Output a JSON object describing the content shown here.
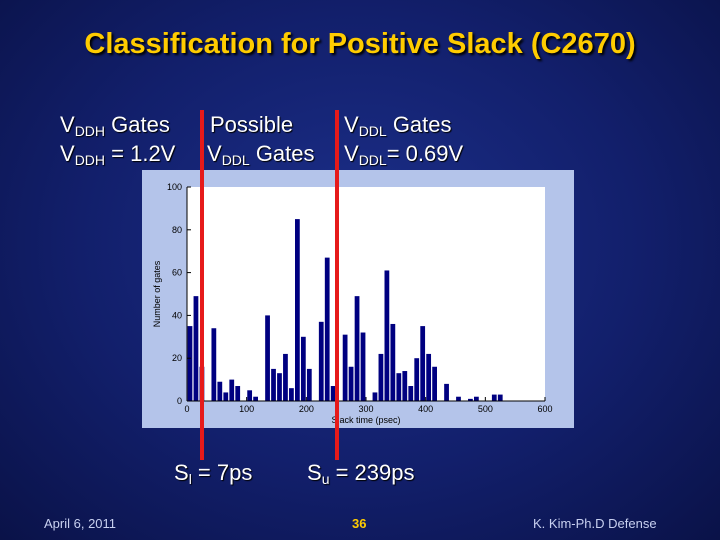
{
  "title": "Classification for Positive Slack (C2670)",
  "labels": {
    "vddh_gates": {
      "v": "V",
      "sub": "DDH",
      "rest": " Gates"
    },
    "vddh_value": {
      "v": "V",
      "sub": "DDH",
      "rest": " = 1.2V"
    },
    "possible": "Possible",
    "possible_vddl": {
      "v": "V",
      "sub": "DDL",
      "rest": " Gates"
    },
    "vddl_gates": {
      "v": "V",
      "sub": "DDL",
      "rest": " Gates"
    },
    "vddl_value": {
      "v": "V",
      "sub": "DDL",
      "rest": "= 0.69V"
    }
  },
  "bounds": {
    "lower": {
      "s": "S",
      "sub": "l",
      "rest": " = 7ps",
      "value": 7
    },
    "upper": {
      "s": "S",
      "sub": "u",
      "rest": " = 239ps",
      "value": 239
    }
  },
  "chart_data": {
    "type": "bar",
    "xlabel": "Slack time (psec)",
    "ylabel": "Number of gates",
    "xlim": [
      0,
      600
    ],
    "ylim": [
      0,
      100
    ],
    "xticks": [
      0,
      100,
      200,
      300,
      400,
      500,
      600
    ],
    "yticks": [
      0,
      20,
      40,
      60,
      80,
      100
    ],
    "bin_width": 10,
    "x": [
      0,
      10,
      20,
      30,
      40,
      50,
      60,
      70,
      80,
      90,
      100,
      110,
      120,
      130,
      140,
      150,
      160,
      170,
      180,
      190,
      200,
      210,
      220,
      230,
      240,
      250,
      260,
      270,
      280,
      290,
      300,
      310,
      320,
      330,
      340,
      350,
      360,
      370,
      380,
      390,
      400,
      410,
      420,
      430,
      440,
      450,
      460,
      470,
      480,
      490,
      500,
      510,
      520,
      530,
      540,
      550,
      560,
      570,
      580,
      590
    ],
    "values": [
      35,
      49,
      16,
      0,
      34,
      9,
      4,
      10,
      7,
      0,
      5,
      2,
      0,
      40,
      15,
      13,
      22,
      6,
      85,
      30,
      15,
      0,
      37,
      67,
      7,
      0,
      31,
      16,
      49,
      32,
      0,
      4,
      22,
      61,
      36,
      13,
      14,
      7,
      20,
      35,
      22,
      16,
      0,
      8,
      0,
      2,
      0,
      1,
      2,
      0,
      0,
      3,
      3,
      0,
      0,
      0,
      0,
      0,
      0,
      0
    ],
    "bar_color": "#000080",
    "grid": false
  },
  "footer": {
    "date": "April 6, 2011",
    "page": "36",
    "author": "K. Kim-Ph.D Defense"
  }
}
